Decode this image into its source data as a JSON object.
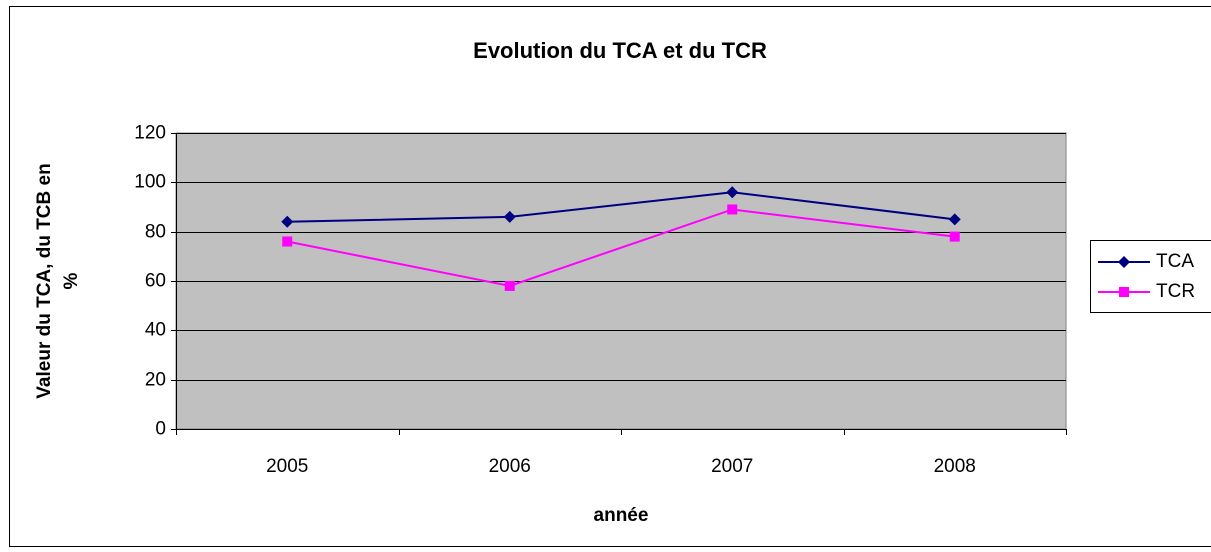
{
  "chart_data": {
    "type": "line",
    "title": "Evolution du TCA et du TCR",
    "xlabel": "année",
    "ylabel": [
      "Valeur du TCA, du TCB en",
      "%"
    ],
    "categories": [
      "2005",
      "2006",
      "2007",
      "2008"
    ],
    "series": [
      {
        "name": "TCA",
        "color": "#000080",
        "marker": "diamond",
        "values": [
          84,
          86,
          96,
          85
        ]
      },
      {
        "name": "TCR",
        "color": "#ff00ff",
        "marker": "square",
        "values": [
          76,
          58,
          89,
          78
        ]
      }
    ],
    "ylim": [
      0,
      120
    ],
    "yticks": [
      0,
      20,
      40,
      60,
      80,
      100,
      120
    ],
    "grid": true,
    "legend": "right"
  }
}
